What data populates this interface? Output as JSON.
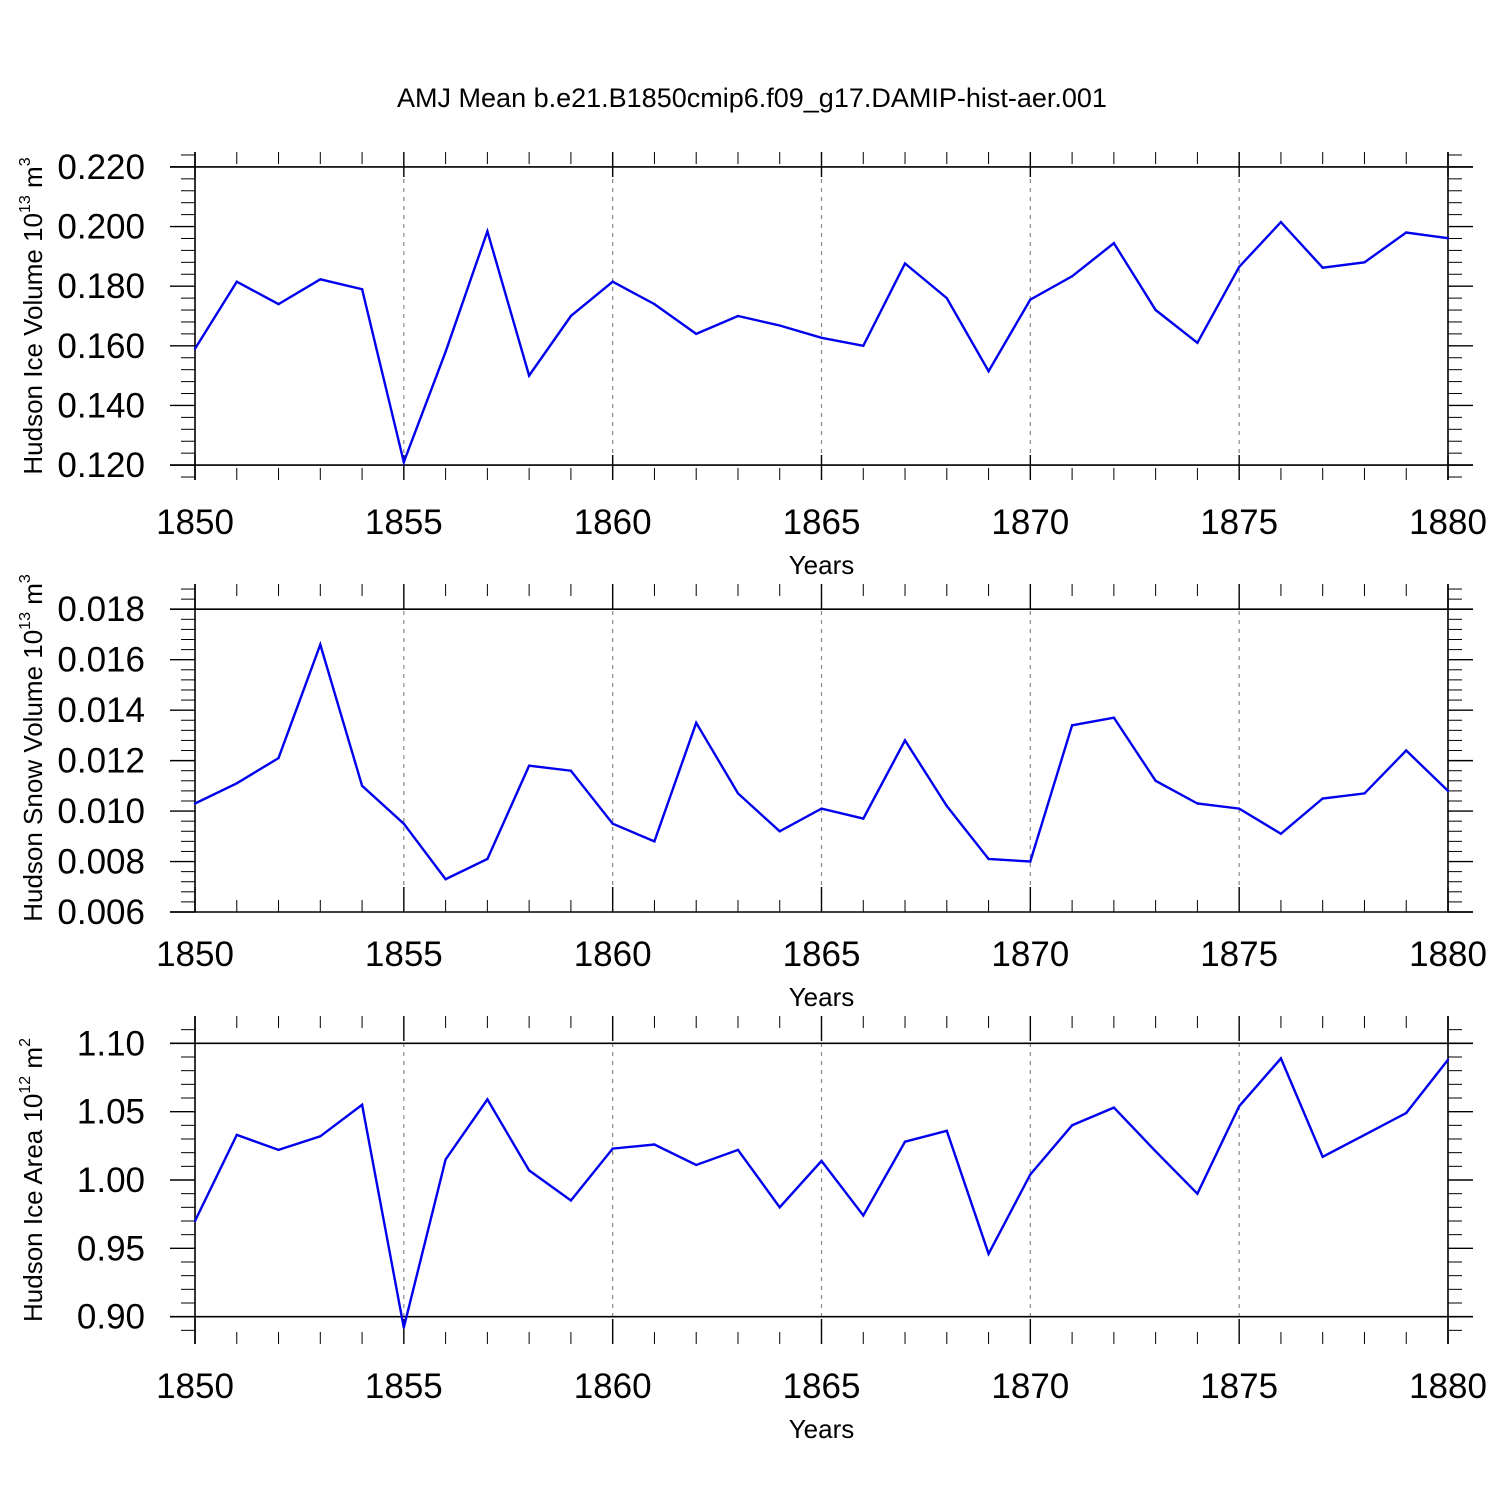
{
  "title": "AMJ Mean b.e21.B1850cmip6.f09_g17.DAMIP-hist-aer.001",
  "colors": {
    "line": "#0000ee",
    "axis": "#000000",
    "grid": "#888888",
    "background": "#ffffff"
  },
  "chart_data": [
    {
      "type": "line",
      "xlabel": "Years",
      "ylabel": {
        "text": "Hudson Ice Volume 10",
        "sup": "13",
        "suffix": " m",
        "sup2": "3"
      },
      "xlim": [
        1850,
        1880
      ],
      "ylim": [
        0.115,
        0.225
      ],
      "xticks": [
        1850,
        1855,
        1860,
        1865,
        1870,
        1875,
        1880
      ],
      "xtick_labels": [
        "1850",
        "1855",
        "1860",
        "1865",
        "1870",
        "1875",
        "1880"
      ],
      "yticks": [
        0.12,
        0.14,
        0.16,
        0.18,
        0.2,
        0.22
      ],
      "ytick_labels": [
        "0.120",
        "0.140",
        "0.160",
        "0.180",
        "0.200",
        "0.220"
      ],
      "yminor_step": 0.004,
      "grid": "vertical-dashed",
      "x": [
        1850,
        1851,
        1852,
        1853,
        1854,
        1855,
        1856,
        1857,
        1858,
        1859,
        1860,
        1861,
        1862,
        1863,
        1864,
        1865,
        1866,
        1867,
        1868,
        1869,
        1870,
        1871,
        1872,
        1873,
        1874,
        1875,
        1876,
        1877,
        1878,
        1879,
        1880
      ],
      "y": [
        0.159,
        0.1815,
        0.174,
        0.1823,
        0.179,
        0.121,
        0.158,
        0.1984,
        0.15,
        0.17,
        0.1815,
        0.174,
        0.164,
        0.17,
        0.1668,
        0.1627,
        0.16,
        0.1876,
        0.176,
        0.1515,
        0.1755,
        0.1833,
        0.1944,
        0.172,
        0.161,
        0.1865,
        0.2015,
        0.1862,
        0.188,
        0.198,
        0.1961
      ]
    },
    {
      "type": "line",
      "xlabel": "Years",
      "ylabel": {
        "text": "Hudson Snow Volume 10",
        "sup": "13",
        "suffix": " m",
        "sup2": "3"
      },
      "xlim": [
        1850,
        1880
      ],
      "ylim": [
        0.006,
        0.019
      ],
      "xticks": [
        1850,
        1855,
        1860,
        1865,
        1870,
        1875,
        1880
      ],
      "xtick_labels": [
        "1850",
        "1855",
        "1860",
        "1865",
        "1870",
        "1875",
        "1880"
      ],
      "yticks": [
        0.006,
        0.008,
        0.01,
        0.012,
        0.014,
        0.016,
        0.018
      ],
      "ytick_labels": [
        "0.006",
        "0.008",
        "0.010",
        "0.012",
        "0.014",
        "0.016",
        "0.018"
      ],
      "yminor_step": 0.0004,
      "grid": "vertical-dashed",
      "x": [
        1850,
        1851,
        1852,
        1853,
        1854,
        1855,
        1856,
        1857,
        1858,
        1859,
        1860,
        1861,
        1862,
        1863,
        1864,
        1865,
        1866,
        1867,
        1868,
        1869,
        1870,
        1871,
        1872,
        1873,
        1874,
        1875,
        1876,
        1877,
        1878,
        1879,
        1880
      ],
      "y": [
        0.0103,
        0.0111,
        0.0121,
        0.0166,
        0.011,
        0.0095,
        0.0073,
        0.0081,
        0.0118,
        0.0116,
        0.0095,
        0.0088,
        0.0135,
        0.0107,
        0.0092,
        0.0101,
        0.0097,
        0.0128,
        0.0102,
        0.0081,
        0.008,
        0.0134,
        0.0137,
        0.0112,
        0.0103,
        0.0101,
        0.0091,
        0.0105,
        0.0107,
        0.0124,
        0.0108
      ]
    },
    {
      "type": "line",
      "xlabel": "Years",
      "ylabel": {
        "text": "Hudson Ice Area 10",
        "sup": "12",
        "suffix": " m",
        "sup2": "2"
      },
      "xlim": [
        1850,
        1880
      ],
      "ylim": [
        0.88,
        1.12
      ],
      "xticks": [
        1850,
        1855,
        1860,
        1865,
        1870,
        1875,
        1880
      ],
      "xtick_labels": [
        "1850",
        "1855",
        "1860",
        "1865",
        "1870",
        "1875",
        "1880"
      ],
      "yticks": [
        0.9,
        0.95,
        1.0,
        1.05,
        1.1
      ],
      "ytick_labels": [
        "0.90",
        "0.95",
        "1.00",
        "1.05",
        "1.10"
      ],
      "yminor_step": 0.01,
      "grid": "vertical-dashed",
      "x": [
        1850,
        1851,
        1852,
        1853,
        1854,
        1855,
        1856,
        1857,
        1858,
        1859,
        1860,
        1861,
        1862,
        1863,
        1864,
        1865,
        1866,
        1867,
        1868,
        1869,
        1870,
        1871,
        1872,
        1873,
        1874,
        1875,
        1876,
        1877,
        1878,
        1879,
        1880
      ],
      "y": [
        0.97,
        1.033,
        1.022,
        1.032,
        1.055,
        0.892,
        1.015,
        1.059,
        1.007,
        0.985,
        1.023,
        1.026,
        1.011,
        1.022,
        0.98,
        1.014,
        0.974,
        1.028,
        1.036,
        0.946,
        1.004,
        1.04,
        1.053,
        1.021,
        0.99,
        1.054,
        1.089,
        1.017,
        1.033,
        1.049,
        1.088
      ]
    }
  ]
}
